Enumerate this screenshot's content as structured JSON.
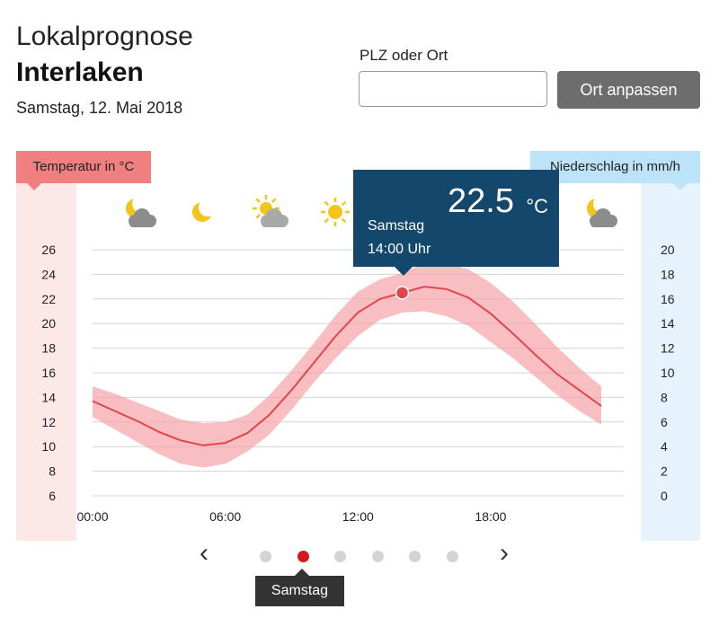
{
  "header": {
    "title": "Lokalprognose",
    "location": "Interlaken",
    "date": "Samstag, 12. Mai 2018"
  },
  "search": {
    "label": "PLZ oder Ort",
    "value": "",
    "placeholder": "",
    "button_label": "Ort anpassen"
  },
  "axes": {
    "temp_label": "Temperatur in °C",
    "rain_label": "Niederschlag in mm/h"
  },
  "weather_icons": [
    "moon-cloud-icon",
    "moon-icon",
    "sun-cloud-icon",
    "sun-icon",
    "sun-icon",
    "moon-cloud-icon"
  ],
  "tooltip": {
    "value": "22.5",
    "unit": "°C",
    "day": "Samstag",
    "time": "14:00 Uhr"
  },
  "pager": {
    "prev": "‹",
    "next": "›",
    "dot_count": 6,
    "active_index": 1,
    "active_label": "Samstag"
  },
  "colors": {
    "temp_line": "#e0474c",
    "temp_band": "#f5a3a8",
    "temp_axis_bg": "#fde8e8",
    "rain_axis_bg": "#e6f3fc",
    "tooltip_bg": "#13476b",
    "active_dot": "#d2181d"
  },
  "chart_data": {
    "type": "line",
    "x_ticks": [
      "00:00",
      "06:00",
      "12:00",
      "18:00"
    ],
    "y_ticks_left": [
      "26",
      "24",
      "22",
      "20",
      "18",
      "16",
      "14",
      "12",
      "10",
      "8",
      "6"
    ],
    "y_ticks_right": [
      "20",
      "18",
      "16",
      "14",
      "12",
      "10",
      "8",
      "6",
      "4",
      "2",
      "0"
    ],
    "ylim_left": [
      6,
      26
    ],
    "ylim_right": [
      0,
      20
    ],
    "xlim_hours": [
      0,
      23
    ],
    "grid": true,
    "series": [
      {
        "x": [
          0,
          1,
          2,
          3,
          4,
          5,
          6,
          7,
          8,
          9,
          10,
          11,
          12,
          13,
          14,
          15,
          16,
          17,
          18,
          19,
          20,
          21,
          22,
          23
        ],
        "y": [
          13.7,
          12.9,
          12.1,
          11.2,
          10.5,
          10.1,
          10.3,
          11.1,
          12.6,
          14.6,
          16.8,
          19.0,
          20.9,
          22.0,
          22.5,
          23.0,
          22.8,
          22.1,
          20.8,
          19.2,
          17.5,
          15.9,
          14.6,
          13.3
        ],
        "y_low": [
          12.4,
          11.4,
          10.4,
          9.4,
          8.6,
          8.3,
          8.6,
          9.6,
          11.0,
          13.0,
          15.2,
          17.2,
          19.0,
          20.3,
          20.9,
          21.0,
          20.6,
          19.8,
          18.5,
          17.2,
          15.7,
          14.2,
          12.9,
          11.8
        ],
        "y_high": [
          14.9,
          14.3,
          13.6,
          12.9,
          12.2,
          11.9,
          12.0,
          12.6,
          14.2,
          16.2,
          18.4,
          20.7,
          22.6,
          23.6,
          24.1,
          24.9,
          24.9,
          24.4,
          23.3,
          21.8,
          20.0,
          18.1,
          16.4,
          14.9
        ]
      }
    ],
    "highlight": {
      "x": 14,
      "y": 22.5
    }
  }
}
